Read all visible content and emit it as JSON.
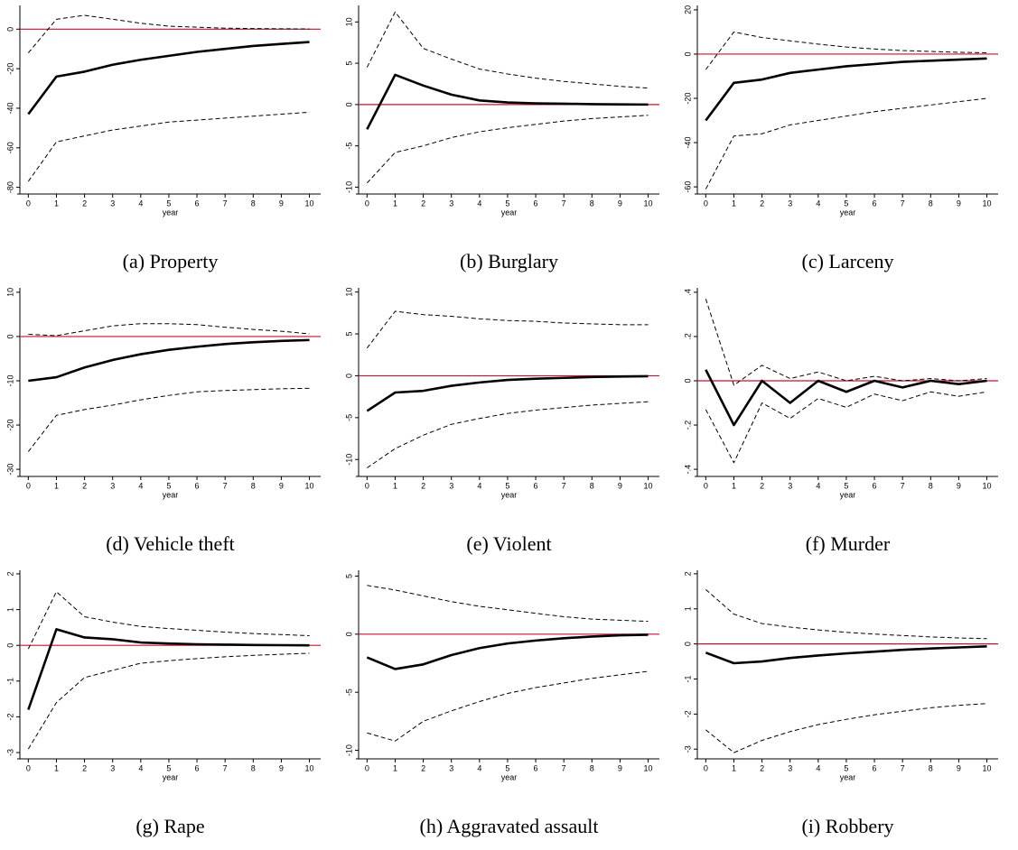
{
  "chart_data": [
    {
      "type": "line",
      "caption": "(a) Property",
      "xlabel": "year",
      "x": [
        0,
        1,
        2,
        3,
        4,
        5,
        6,
        7,
        8,
        9,
        10
      ],
      "xlim": [
        -0.3,
        10.4
      ],
      "xticks": [
        0,
        1,
        2,
        3,
        4,
        5,
        6,
        7,
        8,
        9,
        10
      ],
      "ylim": [
        -82,
        12
      ],
      "yticks": [
        -80,
        -60,
        -40,
        -20,
        0
      ],
      "refline": {
        "value": 0,
        "color": "#c8102e"
      },
      "series": [
        {
          "color": "#000000",
          "style": "solid",
          "values": [
            -43,
            -24,
            -21.5,
            -18,
            -15.5,
            -13.5,
            -11.5,
            -10,
            -8.5,
            -7.5,
            -6.5
          ]
        },
        {
          "color": "#000000",
          "style": "dashed",
          "values": [
            -12,
            5,
            7,
            5,
            3,
            1.5,
            1,
            0.5,
            0.3,
            0.2,
            0.1
          ]
        },
        {
          "color": "#000000",
          "style": "dashed",
          "values": [
            -77,
            -57,
            -54,
            -51,
            -49,
            -47,
            -46,
            -45,
            -44,
            -43,
            -42
          ]
        }
      ]
    },
    {
      "type": "line",
      "caption": "(b) Burglary",
      "xlabel": "year",
      "x": [
        0,
        1,
        2,
        3,
        4,
        5,
        6,
        7,
        8,
        9,
        10
      ],
      "xlim": [
        -0.3,
        10.4
      ],
      "xticks": [
        0,
        1,
        2,
        3,
        4,
        5,
        6,
        7,
        8,
        9,
        10
      ],
      "ylim": [
        -10.5,
        12
      ],
      "yticks": [
        -10,
        -5,
        0,
        5,
        10
      ],
      "refline": {
        "value": 0,
        "color": "#c8102e"
      },
      "series": [
        {
          "color": "#000000",
          "style": "solid",
          "values": [
            -3,
            3.6,
            2.3,
            1.2,
            0.5,
            0.25,
            0.15,
            0.1,
            0.05,
            0.02,
            0
          ]
        },
        {
          "color": "#000000",
          "style": "dashed",
          "values": [
            4.5,
            11.2,
            6.8,
            5.5,
            4.3,
            3.7,
            3.2,
            2.8,
            2.5,
            2.2,
            2
          ]
        },
        {
          "color": "#000000",
          "style": "dashed",
          "values": [
            -9.5,
            -5.8,
            -5,
            -4,
            -3.3,
            -2.8,
            -2.4,
            -2,
            -1.7,
            -1.5,
            -1.3
          ]
        }
      ]
    },
    {
      "type": "line",
      "caption": "(c) Larceny",
      "xlabel": "year",
      "x": [
        0,
        1,
        2,
        3,
        4,
        5,
        6,
        7,
        8,
        9,
        10
      ],
      "xlim": [
        -0.3,
        10.4
      ],
      "xticks": [
        0,
        1,
        2,
        3,
        4,
        5,
        6,
        7,
        8,
        9,
        10
      ],
      "ylim": [
        -62,
        22
      ],
      "yticks": [
        -60,
        -40,
        -20,
        0,
        20
      ],
      "refline": {
        "value": 0,
        "color": "#c8102e"
      },
      "series": [
        {
          "color": "#000000",
          "style": "solid",
          "values": [
            -30,
            -13,
            -11.5,
            -8.5,
            -7,
            -5.5,
            -4.5,
            -3.5,
            -3,
            -2.5,
            -2
          ]
        },
        {
          "color": "#000000",
          "style": "dashed",
          "values": [
            -7,
            10,
            7.5,
            6,
            4.5,
            3.2,
            2.3,
            1.6,
            1.2,
            0.8,
            0.6
          ]
        },
        {
          "color": "#000000",
          "style": "dashed",
          "values": [
            -61,
            -37,
            -36,
            -32,
            -30,
            -28,
            -26,
            -24.5,
            -23,
            -21.5,
            -20
          ]
        }
      ]
    },
    {
      "type": "line",
      "caption": "(d) Vehicle theft",
      "xlabel": "year",
      "x": [
        0,
        1,
        2,
        3,
        4,
        5,
        6,
        7,
        8,
        9,
        10
      ],
      "xlim": [
        -0.3,
        10.4
      ],
      "xticks": [
        0,
        1,
        2,
        3,
        4,
        5,
        6,
        7,
        8,
        9,
        10
      ],
      "ylim": [
        -31,
        11
      ],
      "yticks": [
        -30,
        -20,
        -10,
        0,
        10
      ],
      "refline": {
        "value": 0,
        "color": "#c8102e"
      },
      "series": [
        {
          "color": "#000000",
          "style": "solid",
          "values": [
            -10,
            -9.2,
            -7,
            -5.3,
            -4,
            -3,
            -2.3,
            -1.7,
            -1.3,
            -1,
            -0.8
          ]
        },
        {
          "color": "#000000",
          "style": "dashed",
          "values": [
            0.5,
            0.2,
            1.3,
            2.4,
            2.9,
            2.9,
            2.7,
            2.1,
            1.6,
            1.2,
            0.6
          ]
        },
        {
          "color": "#000000",
          "style": "dashed",
          "values": [
            -26,
            -17.8,
            -16.5,
            -15.5,
            -14.3,
            -13.3,
            -12.5,
            -12.2,
            -12,
            -11.8,
            -11.7
          ]
        }
      ]
    },
    {
      "type": "line",
      "caption": "(e) Violent",
      "xlabel": "year",
      "x": [
        0,
        1,
        2,
        3,
        4,
        5,
        6,
        7,
        8,
        9,
        10
      ],
      "xlim": [
        -0.3,
        10.4
      ],
      "xticks": [
        0,
        1,
        2,
        3,
        4,
        5,
        6,
        7,
        8,
        9,
        10
      ],
      "ylim": [
        -11.7,
        10.5
      ],
      "yticks": [
        -10,
        -5,
        0,
        5,
        10
      ],
      "refline": {
        "value": 0,
        "color": "#c8102e"
      },
      "series": [
        {
          "color": "#000000",
          "style": "solid",
          "values": [
            -4.2,
            -2,
            -1.8,
            -1.2,
            -0.8,
            -0.5,
            -0.35,
            -0.25,
            -0.15,
            -0.1,
            -0.05
          ]
        },
        {
          "color": "#000000",
          "style": "dashed",
          "values": [
            3.3,
            7.7,
            7.3,
            7.1,
            6.8,
            6.6,
            6.5,
            6.3,
            6.2,
            6.1,
            6.1
          ]
        },
        {
          "color": "#000000",
          "style": "dashed",
          "values": [
            -11,
            -8.7,
            -7.1,
            -5.8,
            -5.1,
            -4.5,
            -4.1,
            -3.8,
            -3.5,
            -3.3,
            -3.1
          ]
        }
      ]
    },
    {
      "type": "line",
      "caption": "(f) Murder",
      "xlabel": "year",
      "x": [
        0,
        1,
        2,
        3,
        4,
        5,
        6,
        7,
        8,
        9,
        10
      ],
      "xlim": [
        -0.3,
        10.4
      ],
      "xticks": [
        0,
        1,
        2,
        3,
        4,
        5,
        6,
        7,
        8,
        9,
        10
      ],
      "ylim": [
        -0.42,
        0.42
      ],
      "yticks": [
        {
          "value": -0.4,
          "label": "-.4"
        },
        {
          "value": -0.2,
          "label": "-.2"
        },
        0,
        {
          "value": 0.2,
          "label": ".2"
        },
        {
          "value": 0.4,
          "label": ".4"
        }
      ],
      "refline": {
        "value": 0,
        "color": "#c8102e"
      },
      "series": [
        {
          "color": "#000000",
          "style": "solid",
          "values": [
            0.05,
            -0.2,
            0,
            -0.1,
            0,
            -0.05,
            0,
            -0.03,
            0,
            -0.015,
            0
          ]
        },
        {
          "color": "#000000",
          "style": "dashed",
          "values": [
            0.37,
            -0.02,
            0.07,
            0.01,
            0.04,
            0,
            0.02,
            0,
            0.01,
            0,
            0.01
          ]
        },
        {
          "color": "#000000",
          "style": "dashed",
          "values": [
            -0.13,
            -0.37,
            -0.1,
            -0.17,
            -0.08,
            -0.12,
            -0.06,
            -0.09,
            -0.05,
            -0.07,
            -0.05
          ]
        }
      ]
    },
    {
      "type": "line",
      "caption": "(g) Rape",
      "xlabel": "year",
      "x": [
        0,
        1,
        2,
        3,
        4,
        5,
        6,
        7,
        8,
        9,
        10
      ],
      "xlim": [
        -0.3,
        10.4
      ],
      "xticks": [
        0,
        1,
        2,
        3,
        4,
        5,
        6,
        7,
        8,
        9,
        10
      ],
      "ylim": [
        -3.1,
        2.1
      ],
      "yticks": [
        -3,
        -2,
        -1,
        0,
        1,
        2
      ],
      "refline": {
        "value": 0,
        "color": "#c8102e"
      },
      "series": [
        {
          "color": "#000000",
          "style": "solid",
          "values": [
            -1.8,
            0.45,
            0.22,
            0.17,
            0.08,
            0.05,
            0.03,
            0.02,
            0.01,
            0.005,
            0
          ]
        },
        {
          "color": "#000000",
          "style": "dashed",
          "values": [
            -0.1,
            1.5,
            0.8,
            0.65,
            0.53,
            0.47,
            0.42,
            0.37,
            0.33,
            0.3,
            0.27
          ]
        },
        {
          "color": "#000000",
          "style": "dashed",
          "values": [
            -2.9,
            -1.6,
            -0.9,
            -0.7,
            -0.5,
            -0.43,
            -0.37,
            -0.32,
            -0.28,
            -0.25,
            -0.22
          ]
        }
      ]
    },
    {
      "type": "line",
      "caption": "(h) Aggravated assault",
      "xlabel": "year",
      "x": [
        0,
        1,
        2,
        3,
        4,
        5,
        6,
        7,
        8,
        9,
        10
      ],
      "xlim": [
        -0.3,
        10.4
      ],
      "xticks": [
        0,
        1,
        2,
        3,
        4,
        5,
        6,
        7,
        8,
        9,
        10
      ],
      "ylim": [
        -10.5,
        5.5
      ],
      "yticks": [
        -10,
        -5,
        0,
        5
      ],
      "refline": {
        "value": 0,
        "color": "#c8102e"
      },
      "series": [
        {
          "color": "#000000",
          "style": "solid",
          "values": [
            -2,
            -3,
            -2.6,
            -1.8,
            -1.2,
            -0.8,
            -0.55,
            -0.35,
            -0.2,
            -0.1,
            -0.05
          ]
        },
        {
          "color": "#000000",
          "style": "dashed",
          "values": [
            4.2,
            3.8,
            3.3,
            2.8,
            2.4,
            2.1,
            1.8,
            1.5,
            1.3,
            1.2,
            1.1
          ]
        },
        {
          "color": "#000000",
          "style": "dashed",
          "values": [
            -8.5,
            -9.2,
            -7.5,
            -6.6,
            -5.8,
            -5.1,
            -4.6,
            -4.2,
            -3.8,
            -3.5,
            -3.2
          ]
        }
      ]
    },
    {
      "type": "line",
      "caption": "(i) Robbery",
      "xlabel": "year",
      "x": [
        0,
        1,
        2,
        3,
        4,
        5,
        6,
        7,
        8,
        9,
        10
      ],
      "xlim": [
        -0.3,
        10.4
      ],
      "xticks": [
        0,
        1,
        2,
        3,
        4,
        5,
        6,
        7,
        8,
        9,
        10
      ],
      "ylim": [
        -3.2,
        2.1
      ],
      "yticks": [
        -3,
        -2,
        -1,
        0,
        1,
        2
      ],
      "refline": {
        "value": 0,
        "color": "#c8102e"
      },
      "series": [
        {
          "color": "#000000",
          "style": "solid",
          "values": [
            -0.25,
            -0.55,
            -0.5,
            -0.4,
            -0.33,
            -0.27,
            -0.22,
            -0.17,
            -0.13,
            -0.1,
            -0.07
          ]
        },
        {
          "color": "#000000",
          "style": "dashed",
          "values": [
            1.55,
            0.85,
            0.58,
            0.48,
            0.4,
            0.33,
            0.28,
            0.24,
            0.2,
            0.17,
            0.15
          ]
        },
        {
          "color": "#000000",
          "style": "dashed",
          "values": [
            -2.45,
            -3.1,
            -2.75,
            -2.5,
            -2.3,
            -2.15,
            -2.02,
            -1.92,
            -1.82,
            -1.75,
            -1.7
          ]
        }
      ]
    }
  ]
}
